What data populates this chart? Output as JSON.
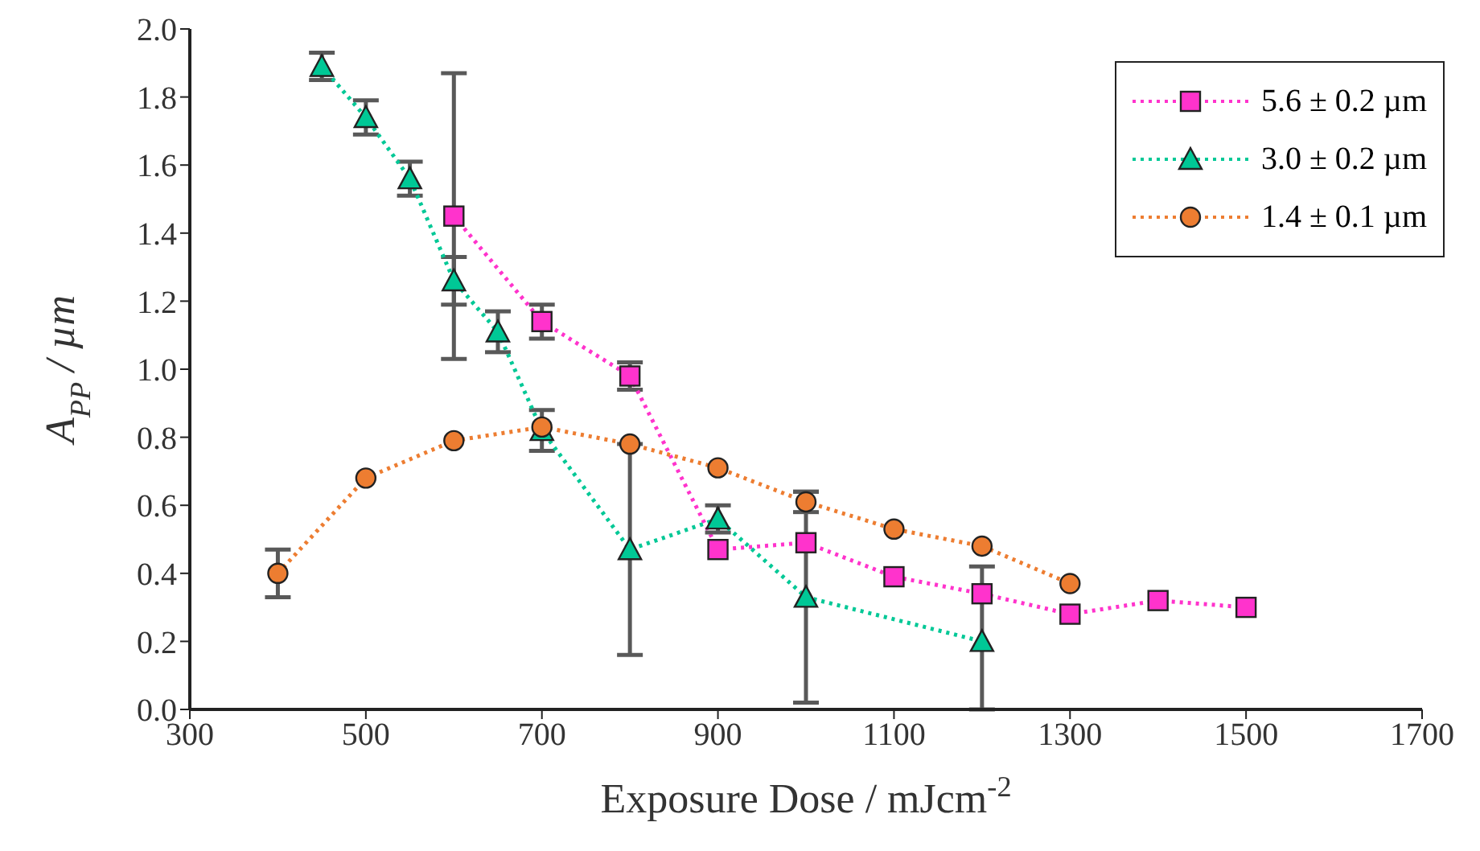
{
  "chart_data": {
    "type": "line",
    "xlabel": "Exposure Dose / mJcm$^{-2}$",
    "ylabel": "A$_{PP}$ / µm",
    "xlim": [
      300,
      1700
    ],
    "xticks": [
      300,
      500,
      700,
      900,
      1100,
      1300,
      1500,
      1700
    ],
    "ylim": [
      0,
      2
    ],
    "yticks": [
      {
        "value": 0,
        "label": "0.0"
      },
      0.2,
      0.4,
      0.6,
      0.8,
      {
        "value": 1,
        "label": "1.0"
      },
      1.2,
      1.4,
      1.6,
      1.8,
      {
        "value": 2,
        "label": "2.0"
      }
    ],
    "grid": false,
    "legend": "top right",
    "line_style": "dotted",
    "series": [
      {
        "name": "5.6 ± 0.2 µm",
        "color": "#ff33cc",
        "marker": "square",
        "x": [
          600,
          700,
          800,
          900,
          1000,
          1100,
          1200,
          1300,
          1400,
          1500
        ],
        "values": [
          1.45,
          1.14,
          0.98,
          0.47,
          0.49,
          0.39,
          0.34,
          0.28,
          0.32,
          0.3
        ],
        "errors": [
          0.42,
          0.05,
          0.04,
          null,
          null,
          null,
          null,
          null,
          null,
          null
        ]
      },
      {
        "name": "3.0 ± 0.2 µm",
        "color": "#00c896",
        "marker": "triangle",
        "x": [
          450,
          500,
          550,
          600,
          650,
          700,
          800,
          900,
          1000,
          1200
        ],
        "values": [
          1.89,
          1.74,
          1.56,
          1.26,
          1.11,
          0.82,
          0.47,
          0.56,
          0.33,
          0.2
        ],
        "errors": [
          0.04,
          0.05,
          0.05,
          0.07,
          0.06,
          0.06,
          0.31,
          0.04,
          0.31,
          [
            0.0,
            0.42
          ]
        ]
      },
      {
        "name": "1.4 ± 0.1 µm",
        "color": "#ed7d31",
        "marker": "circle",
        "x": [
          400,
          500,
          600,
          700,
          800,
          900,
          1000,
          1100,
          1200,
          1300
        ],
        "values": [
          0.4,
          0.68,
          0.79,
          0.83,
          0.78,
          0.71,
          0.61,
          0.53,
          0.48,
          0.37
        ],
        "errors": [
          0.07,
          null,
          null,
          null,
          null,
          null,
          0.03,
          null,
          null,
          null
        ]
      }
    ]
  }
}
